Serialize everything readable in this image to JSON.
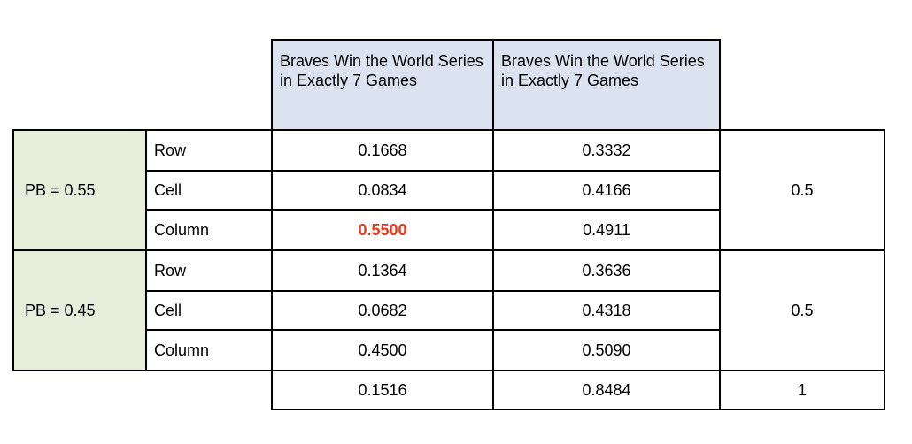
{
  "headers": {
    "col1": "Braves Win the World Series in Exactly 7 Games",
    "col2": "Braves Win the World Series in Exactly 7 Games"
  },
  "groups": [
    {
      "label": "PB = 0.55",
      "rows": [
        {
          "label": "Row",
          "v1": "0.1668",
          "v2": "0.3332"
        },
        {
          "label": "Cell",
          "v1": "0.0834",
          "v2": "0.4166"
        },
        {
          "label": "Column",
          "v1": "0.5500",
          "v2": "0.4911"
        }
      ],
      "total": "0.5"
    },
    {
      "label": "PB = 0.45",
      "rows": [
        {
          "label": "Row",
          "v1": "0.1364",
          "v2": "0.3636"
        },
        {
          "label": "Cell",
          "v1": "0.0682",
          "v2": "0.4318"
        },
        {
          "label": "Column",
          "v1": "0.4500",
          "v2": "0.5090"
        }
      ],
      "total": "0.5"
    }
  ],
  "totals": {
    "v1": "0.1516",
    "v2": "0.8484",
    "grand": "1"
  },
  "highlight_color": "#e53b1c"
}
